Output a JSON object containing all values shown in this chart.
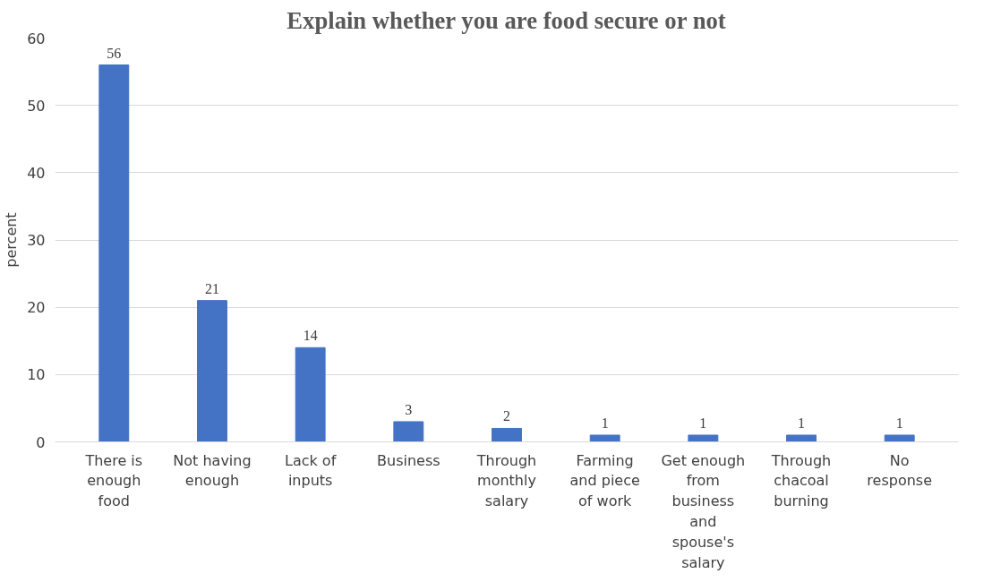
{
  "chart_data": {
    "type": "bar",
    "title": "Explain whether you are food secure or not",
    "ylabel": "percent",
    "categories": [
      "There is enough food",
      "Not having enough",
      "Lack of inputs",
      "Business",
      "Through monthly salary",
      "Farming and piece of work",
      "Get enough from business and spouse's salary",
      "Through chacoal burning",
      "No response"
    ],
    "values": [
      56,
      21,
      14,
      3,
      2,
      1,
      1,
      1,
      1
    ],
    "color": "#4472c4",
    "ylim": [
      0,
      60
    ],
    "yticks": [
      0,
      10,
      20,
      30,
      40,
      50,
      60
    ],
    "grid": "y",
    "data_labels": true
  }
}
